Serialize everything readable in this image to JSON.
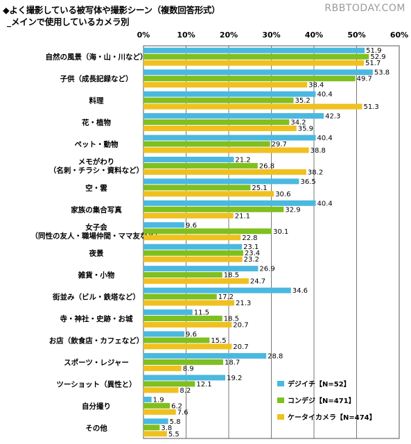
{
  "header": {
    "title_line1": "◆よく撮影している被写体や撮影シーン（複数回答形式）",
    "title_line2": "_メインで使用しているカメラ別",
    "watermark": "RBBTODAY.COM"
  },
  "chart_data": {
    "type": "bar",
    "orientation": "horizontal",
    "xlim": [
      0,
      60
    ],
    "ticks": [
      "0%",
      "10%",
      "20%",
      "30%",
      "40%",
      "50%",
      "60%"
    ],
    "grid": true,
    "legend_position": "bottom-right",
    "categories": [
      [
        "自然の風景（海・山・川など）"
      ],
      [
        "子供（成長記録など）"
      ],
      [
        "料理"
      ],
      [
        "花・植物"
      ],
      [
        "ペット・動物"
      ],
      [
        "メモがわり",
        "（名刺・チラシ・資料など）"
      ],
      [
        "空・雲"
      ],
      [
        "家族の集合写真"
      ],
      [
        "女子会",
        "（同性の友人・職場仲間・ママ友など）"
      ],
      [
        "夜景"
      ],
      [
        "雑貨・小物"
      ],
      [
        "街並み（ビル・鉄塔など）"
      ],
      [
        "寺・神社・史跡・お城"
      ],
      [
        "お店（飲食店・カフェなど）"
      ],
      [
        "スポーツ・レジャー"
      ],
      [
        "ツーショット（異性と）"
      ],
      [
        "自分撮り"
      ],
      [
        "その他"
      ]
    ],
    "series": [
      {
        "name": "デジイチ【N=52】",
        "color": "#4bb8e0",
        "values": [
          51.9,
          53.8,
          40.4,
          42.3,
          40.4,
          21.2,
          36.5,
          40.4,
          9.6,
          23.1,
          26.9,
          34.6,
          11.5,
          9.6,
          28.8,
          19.2,
          1.9,
          5.8
        ]
      },
      {
        "name": "コンデジ【N=471】",
        "color": "#7fbf1f",
        "values": [
          52.9,
          49.7,
          35.2,
          34.2,
          29.7,
          26.8,
          25.1,
          32.9,
          30.1,
          23.4,
          18.5,
          17.2,
          18.5,
          15.5,
          18.7,
          12.1,
          6.2,
          3.8
        ]
      },
      {
        "name": "ケータイカメラ【N=474】",
        "color": "#f0c020",
        "values": [
          51.7,
          38.4,
          51.3,
          35.9,
          38.8,
          38.2,
          30.6,
          21.1,
          22.8,
          23.2,
          24.7,
          21.3,
          20.7,
          20.7,
          8.9,
          8.2,
          7.6,
          5.5
        ]
      }
    ]
  }
}
